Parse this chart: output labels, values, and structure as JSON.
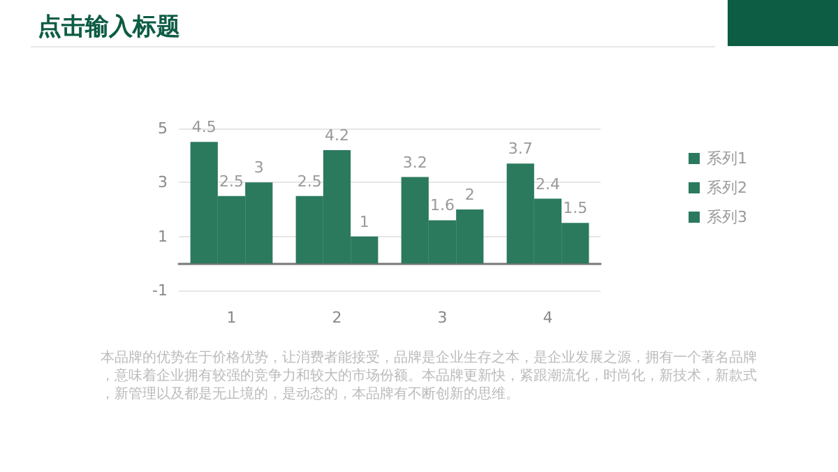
{
  "chart_data": {
    "type": "bar",
    "title": "点击输入标题",
    "categories": [
      "1",
      "2",
      "3",
      "4"
    ],
    "series": [
      {
        "name": "系列1",
        "color": "#2b7a5e",
        "values": [
          4.5,
          2.5,
          3.2,
          3.7
        ]
      },
      {
        "name": "系列2",
        "color": "#2b7a5e",
        "values": [
          2.5,
          4.2,
          1.6,
          2.4
        ]
      },
      {
        "name": "系列3",
        "color": "#2b7a5e",
        "values": [
          3,
          1,
          2,
          1.5
        ]
      }
    ],
    "ylim": [
      -1,
      5
    ],
    "yticks": [
      -1,
      1,
      3,
      5
    ],
    "grid": "y",
    "legend": "right",
    "data_labels": true,
    "annotations": [
      "本品牌的优势在于价格优势，让消费者能接受，品牌是企业生存之本，是企业发展之源，拥有一个著名品牌，意味着企业拥有较强的竞争力和较大的市场份额。本品牌更新快，紧跟潮流化，时尚化，新技术，新款式，新管理以及都是无止境的，是动态的，本品牌有不断创新的思维。"
    ]
  }
}
